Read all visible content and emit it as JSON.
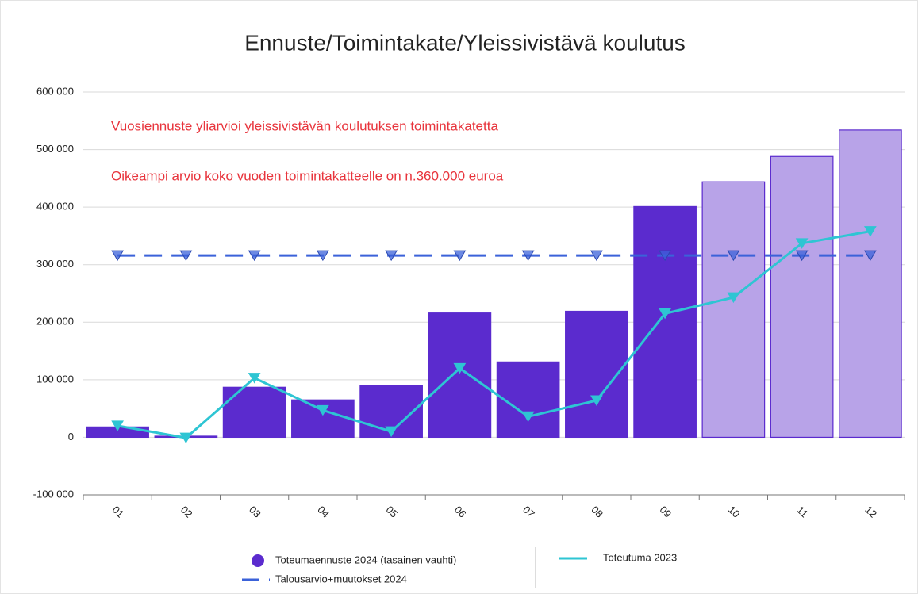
{
  "chart_data": {
    "type": "bar",
    "title": "Ennuste/Toimintakate/Yleissivistävä koulutus",
    "annotations": [
      "Vuosiennuste yliarvioi yleissivistävän koulutuksen toimintakatetta",
      "Oikeampi arvio koko vuoden toimintakatteelle on n.360.000 euroa"
    ],
    "categories": [
      "01",
      "02",
      "03",
      "04",
      "05",
      "06",
      "07",
      "08",
      "09",
      "10",
      "11",
      "12"
    ],
    "series": [
      {
        "name": "Toteumaennuste 2024 (tasainen vauhti)",
        "type": "bar",
        "color": "#5b2bce",
        "colors": [
          "#5b2bce",
          "#5b2bce",
          "#5b2bce",
          "#5b2bce",
          "#5b2bce",
          "#5b2bce",
          "#5b2bce",
          "#5b2bce",
          "#5b2bce",
          "#b8a3e8",
          "#b8a3e8",
          "#b8a3e8"
        ],
        "values": [
          18000,
          2000,
          87000,
          65000,
          90000,
          216000,
          131000,
          219000,
          401000,
          444000,
          488000,
          534000
        ]
      },
      {
        "name": "Talousarvio+muutokset 2024",
        "type": "line",
        "dashed": true,
        "color": "#3b62d9",
        "values": [
          316000,
          316000,
          316000,
          316000,
          316000,
          316000,
          316000,
          316000,
          316000,
          316000,
          316000,
          316000
        ]
      },
      {
        "name": "Toteutuma 2023",
        "type": "line",
        "color": "#2ec5d3",
        "values": [
          20000,
          -1000,
          103000,
          47000,
          10000,
          120000,
          36000,
          64000,
          215000,
          243000,
          337000,
          358000
        ]
      }
    ],
    "ylim": [
      -100000,
      600000
    ],
    "yticks": [
      {
        "value": -100000,
        "label": "-100 000"
      },
      0,
      {
        "value": 100000,
        "label": "100 000"
      },
      {
        "value": 200000,
        "label": "200 000"
      },
      {
        "value": 300000,
        "label": "300 000"
      },
      {
        "value": 400000,
        "label": "400 000"
      },
      {
        "value": 500000,
        "label": "500 000"
      },
      {
        "value": 600000,
        "label": "600 000"
      }
    ],
    "grid": true
  }
}
